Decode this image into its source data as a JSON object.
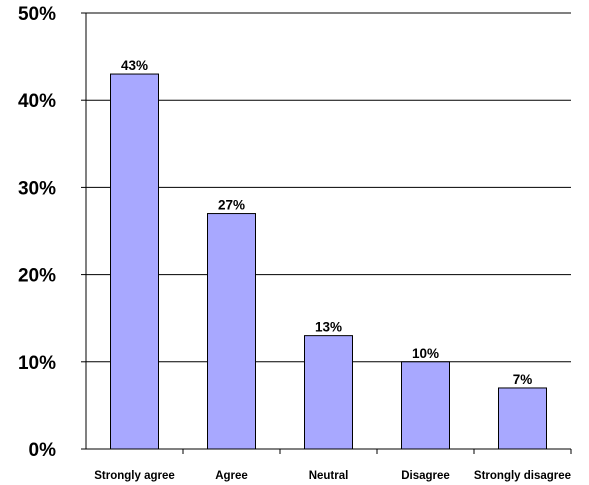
{
  "chart_data": {
    "type": "bar",
    "categories": [
      "Strongly agree",
      "Agree",
      "Neutral",
      "Disagree",
      "Strongly disagree"
    ],
    "values": [
      43,
      27,
      13,
      10,
      7
    ],
    "data_labels": [
      "43%",
      "27%",
      "13%",
      "10%",
      "7%"
    ],
    "ylim": [
      0,
      50
    ],
    "yticks": [
      0,
      10,
      20,
      30,
      40,
      50
    ],
    "ytick_labels": [
      "0%",
      "10%",
      "20%",
      "30%",
      "40%",
      "50%"
    ],
    "title": "",
    "xlabel": "",
    "ylabel": "",
    "grid": true,
    "legend": "none",
    "colors": {
      "bar_fill": "#A8A8FF",
      "bar_stroke": "#000000",
      "grid": "#000000",
      "text": "#000000"
    }
  }
}
